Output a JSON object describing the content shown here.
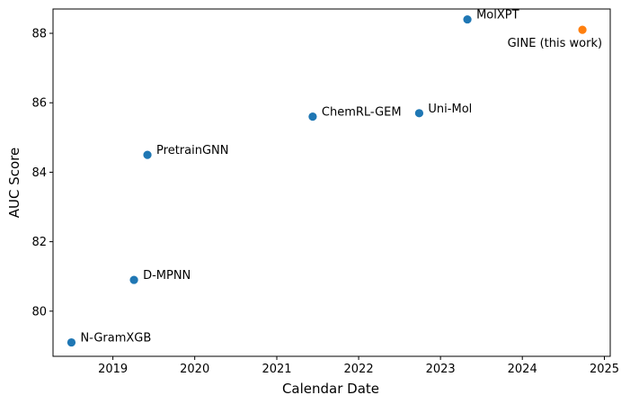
{
  "chart_data": {
    "type": "scatter",
    "title": "",
    "xlabel": "Calendar Date",
    "ylabel": "AUC Score",
    "x_axis_kind": "date",
    "xlim": [
      "2018-04-09",
      "2025-01-27"
    ],
    "ylim": [
      78.7,
      88.7
    ],
    "x_ticks": [
      "2019",
      "2020",
      "2021",
      "2022",
      "2023",
      "2024",
      "2025"
    ],
    "y_ticks": [
      "80",
      "82",
      "84",
      "86",
      "88"
    ],
    "grid": false,
    "legend": "none",
    "colors": {
      "prior_work": "#1f77b4",
      "this_work": "#ff7f0e"
    },
    "points": [
      {
        "label": "N-GramXGB",
        "date": "2018-06-30",
        "y": 79.1,
        "group": "prior_work"
      },
      {
        "label": "D-MPNN",
        "date": "2019-04-05",
        "y": 80.9,
        "group": "prior_work"
      },
      {
        "label": "PretrainGNN",
        "date": "2019-06-04",
        "y": 84.5,
        "group": "prior_work"
      },
      {
        "label": "ChemRL-GEM",
        "date": "2021-06-10",
        "y": 85.6,
        "group": "prior_work"
      },
      {
        "label": "Uni-Mol",
        "date": "2022-09-28",
        "y": 85.7,
        "group": "prior_work"
      },
      {
        "label": "MolXPT",
        "date": "2023-05-01",
        "y": 88.4,
        "group": "prior_work"
      },
      {
        "label": "GINE (this work)",
        "date": "2024-09-25",
        "y": 88.1,
        "group": "this_work",
        "label_position": "below-left"
      }
    ]
  }
}
